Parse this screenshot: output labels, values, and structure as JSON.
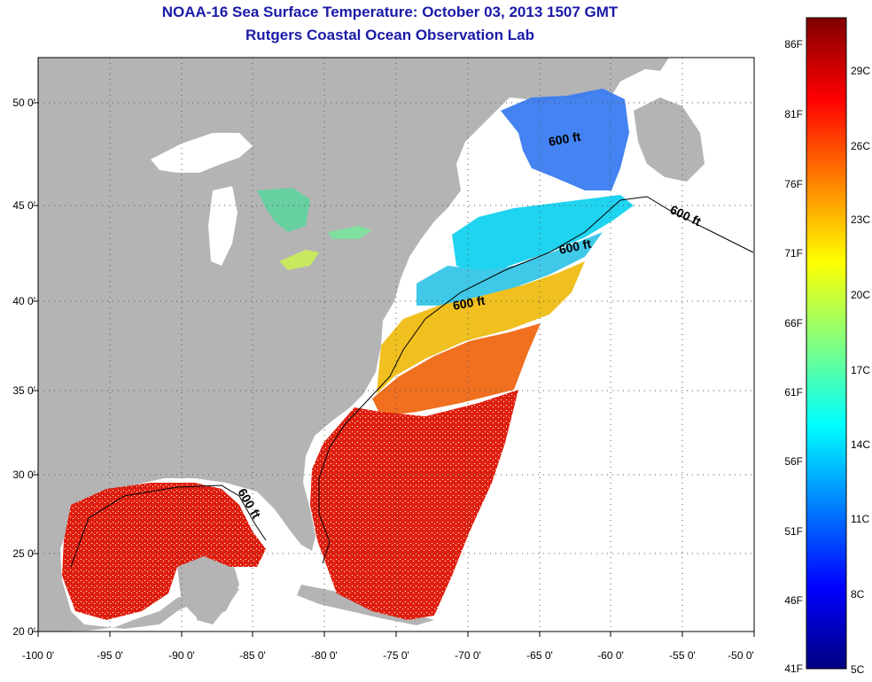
{
  "title_line1": "NOAA-16 Sea Surface Temperature:  October 03, 2013 1507 GMT",
  "title_line2": "Rutgers Coastal Ocean Observation Lab",
  "x_ticks": [
    "-100 0'",
    "-95 0'",
    "-90 0'",
    "-85 0'",
    "-80 0'",
    "-75 0'",
    "-70 0'",
    "-65 0'",
    "-60 0'",
    "-55 0'",
    "-50 0'"
  ],
  "y_ticks": [
    "50 0'",
    "45 0'",
    "40 0'",
    "35 0'",
    "30 0'",
    "25 0'",
    "20 0'"
  ],
  "colorbar": {
    "fahrenheit_labels": [
      "86F",
      "81F",
      "76F",
      "71F",
      "66F",
      "61F",
      "56F",
      "51F",
      "46F",
      "41F"
    ],
    "celsius_labels": [
      "29C",
      "26C",
      "23C",
      "20C",
      "17C",
      "14C",
      "11C",
      "8C",
      "5C"
    ]
  },
  "contour_label": "600 ft",
  "colors": {
    "title": "#1a1aa8",
    "land": "#b4b4b4",
    "no_data": "#ffffff",
    "colormap": [
      "#000080",
      "#0000ff",
      "#0080ff",
      "#00ffff",
      "#80ff80",
      "#ffff00",
      "#ff8000",
      "#ff0000",
      "#800000"
    ]
  }
}
